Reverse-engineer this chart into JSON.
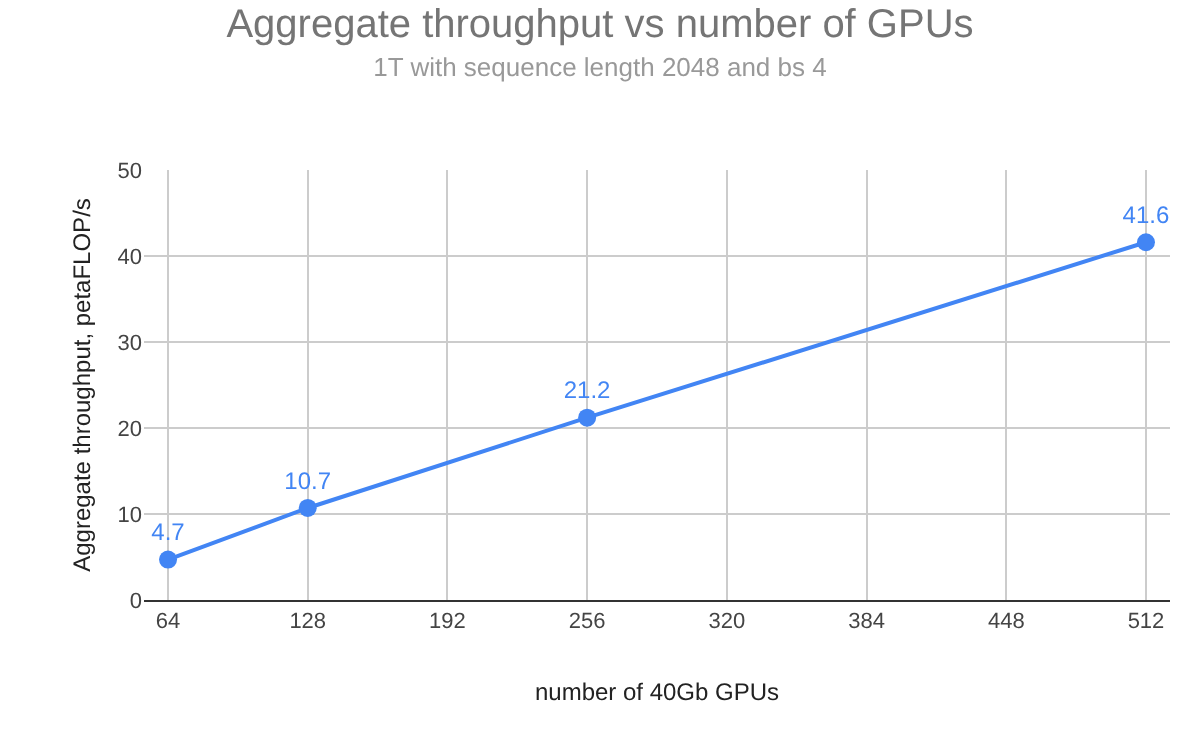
{
  "chart_data": {
    "type": "line",
    "title": "Aggregate throughput vs number of GPUs",
    "subtitle": "1T with sequence length 2048 and bs 4",
    "xlabel": "number of 40Gb GPUs",
    "ylabel": "Aggregate throughput, petaFLOP/s",
    "x": [
      64,
      128,
      256,
      512
    ],
    "series": [
      {
        "color": "#4285f4",
        "values": [
          4.7,
          10.7,
          21.2,
          41.6
        ]
      }
    ],
    "xlim": [
      53,
      523
    ],
    "xticks": [
      64,
      128,
      192,
      256,
      320,
      384,
      448,
      512
    ],
    "ylim": [
      0,
      50
    ],
    "yticks": [
      0,
      10,
      20,
      30,
      40,
      50
    ],
    "grid": true,
    "marker": "circle",
    "line_style": "solid",
    "data_labels": true
  }
}
